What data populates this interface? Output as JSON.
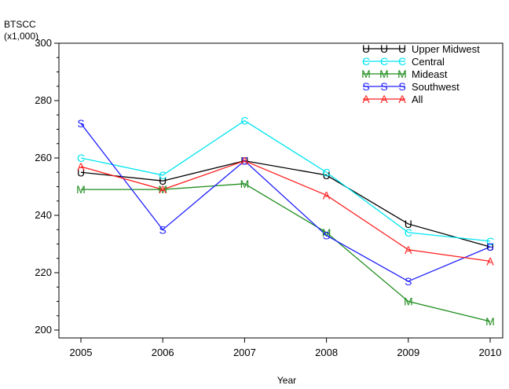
{
  "chart_data": {
    "type": "line",
    "xlabel": "Year",
    "ylabel": "BTSCC",
    "ylabel_unit": "(x1,000)",
    "x": [
      2005,
      2006,
      2007,
      2008,
      2009,
      2010
    ],
    "xlim": [
      2005,
      2010
    ],
    "ylim": [
      198,
      300
    ],
    "yticks": [
      200,
      220,
      240,
      260,
      280,
      300
    ],
    "grid": false,
    "legend_position": "top-right",
    "series": [
      {
        "name": "Upper Midwest",
        "marker": "U",
        "color": "#000000",
        "values": [
          255,
          252,
          259,
          254,
          237,
          229
        ]
      },
      {
        "name": "Central",
        "marker": "C",
        "color": "#00e5f0",
        "values": [
          260,
          254,
          273,
          255,
          234,
          231
        ]
      },
      {
        "name": "Mideast",
        "marker": "M",
        "color": "#1e8c1e",
        "values": [
          249,
          249,
          251,
          234,
          210,
          203
        ]
      },
      {
        "name": "Southwest",
        "marker": "S",
        "color": "#2020ff",
        "values": [
          272,
          235,
          259,
          233,
          217,
          229
        ]
      },
      {
        "name": "All",
        "marker": "A",
        "color": "#ff2020",
        "values": [
          257,
          249,
          259,
          247,
          228,
          224
        ]
      }
    ]
  }
}
